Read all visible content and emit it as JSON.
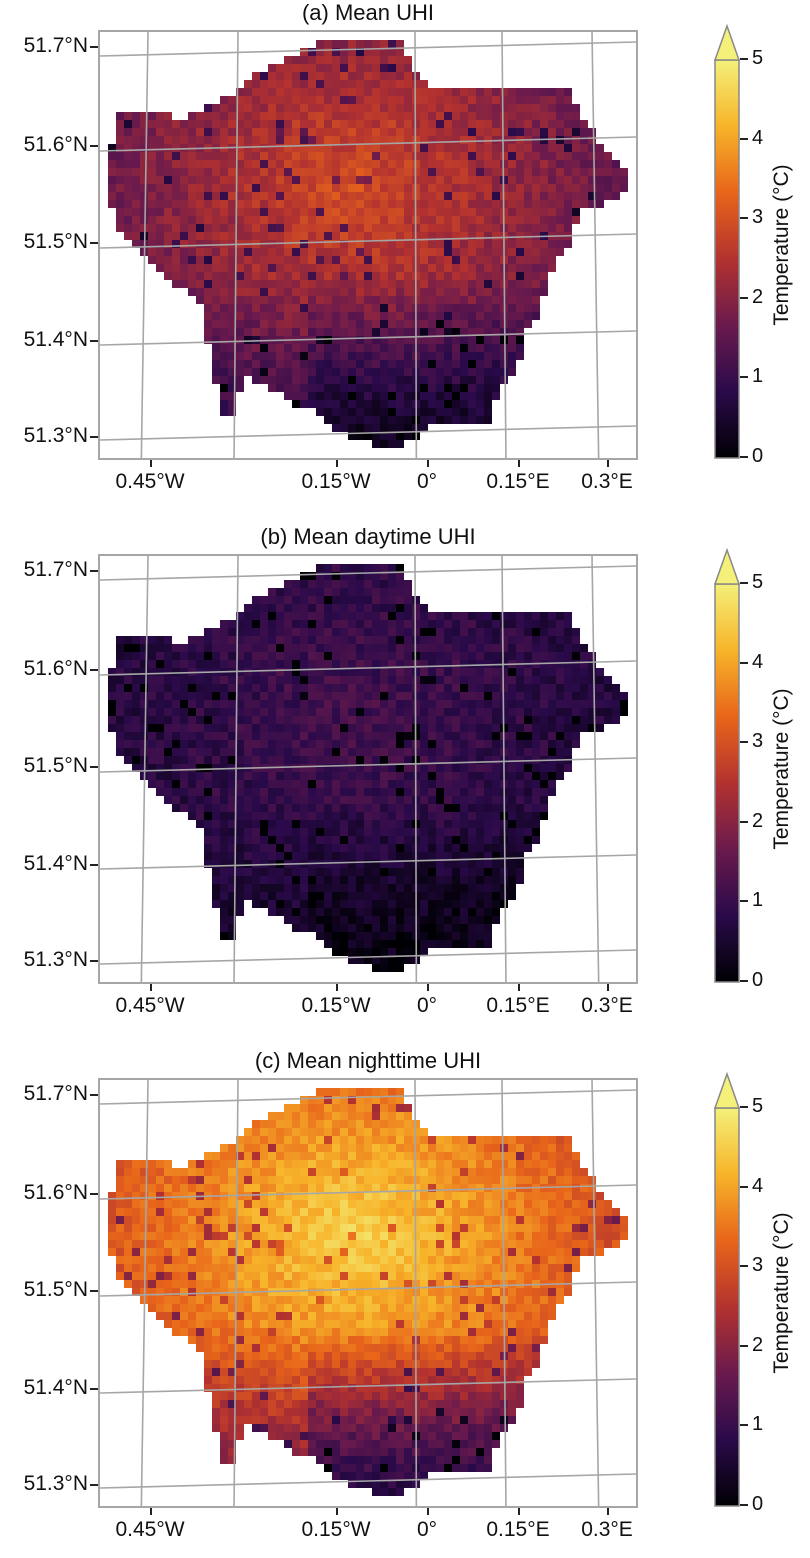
{
  "figure": {
    "colorbar": {
      "title": "Temperature (°C)",
      "ticks": [
        "0",
        "1",
        "2",
        "3",
        "4",
        "5"
      ],
      "range": [
        0,
        5
      ],
      "extend": "max",
      "colormap": "inferno-like (black → purple → red → orange → yellow)",
      "colors": [
        "#000004",
        "#2a0a4a",
        "#6a1a4d",
        "#b3322f",
        "#e8651a",
        "#f7b42a",
        "#f4f07a"
      ]
    },
    "lat_labels": [
      "51.7°N",
      "51.6°N",
      "51.5°N",
      "51.4°N",
      "51.3°N"
    ],
    "lon_labels": [
      "0.45°W",
      "0.15°W",
      "0°",
      "0.15°E",
      "0.3°E"
    ],
    "gridline_color": "#a6a6a6"
  },
  "panels": [
    {
      "id": "a",
      "title": "(a) Mean UHI",
      "center_value": 3.0,
      "edge_value": 1.6,
      "south_value": 0.4
    },
    {
      "id": "b",
      "title": "(b) Mean daytime UHI",
      "center_value": 1.2,
      "edge_value": 0.7,
      "south_value": 0.2
    },
    {
      "id": "c",
      "title": "(c) Mean nighttime UHI",
      "center_value": 4.6,
      "edge_value": 3.0,
      "south_value": 0.8
    }
  ]
}
